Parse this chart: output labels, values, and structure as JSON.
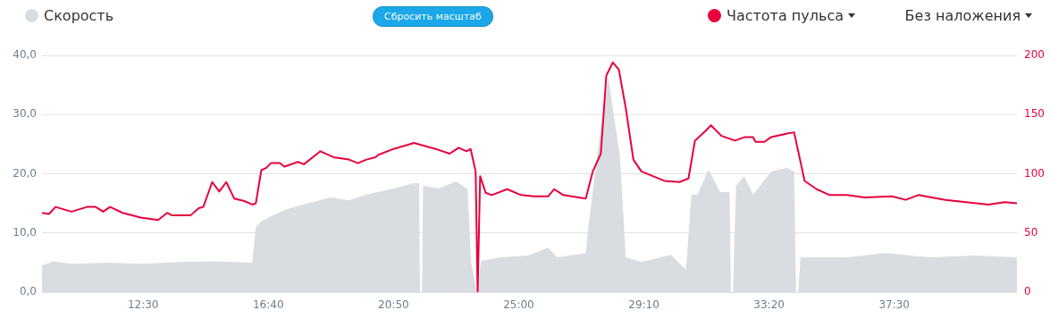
{
  "chart_data": {
    "type": "line",
    "legend": "top",
    "grid": "y",
    "marker": "none",
    "line_style": "solid",
    "annotations": [
      "Сбросить масштаб",
      "Без наложения"
    ],
    "xlim": [
      548,
      2495
    ],
    "xticks": [
      {
        "value": 750,
        "label": "12:30"
      },
      {
        "value": 1000,
        "label": "16:40"
      },
      {
        "value": 1250,
        "label": "20:50"
      },
      {
        "value": 1500,
        "label": "25:00"
      },
      {
        "value": 1750,
        "label": "29:10"
      },
      {
        "value": 2000,
        "label": "33:20"
      },
      {
        "value": 2250,
        "label": "37:30"
      }
    ],
    "ylim": [
      0,
      40
    ],
    "yticks": [
      {
        "value": 0,
        "label": "0,0"
      },
      {
        "value": 10,
        "label": "10,0"
      },
      {
        "value": 20,
        "label": "20,0"
      },
      {
        "value": 30,
        "label": "30,0"
      },
      {
        "value": 40,
        "label": "40,0"
      }
    ],
    "y2lim": [
      0,
      200
    ],
    "y2ticks": [
      0,
      50,
      100,
      150,
      200
    ],
    "series": [
      {
        "name": "Скорость",
        "type": "area",
        "color": "#d9dde1",
        "x": [
          548,
          571,
          607,
          679,
          750,
          821,
          893,
          968,
          975,
          986,
          1009,
          1036,
          1077,
          1125,
          1161,
          1196,
          1250,
          1291,
          1301,
          1303,
          1307,
          1309,
          1339,
          1375,
          1398,
          1405,
          1416,
          1425,
          1464,
          1518,
          1559,
          1577,
          1634,
          1639,
          1661,
          1679,
          1702,
          1714,
          1745,
          1804,
          1834,
          1845,
          1857,
          1879,
          1902,
          1921,
          1924,
          1928,
          1934,
          1950,
          1968,
          2005,
          2036,
          2050,
          2054,
          2058,
          2063,
          2155,
          2232,
          2321,
          2411,
          2495
        ],
        "values": [
          4.5,
          5.2,
          4.8,
          5.0,
          4.8,
          5.1,
          5.2,
          5.0,
          11,
          12,
          13,
          14,
          15,
          16,
          15.5,
          16.5,
          17.5,
          18.4,
          18.4,
          0,
          0,
          18,
          17.5,
          18.7,
          17.4,
          5.1,
          0,
          5.3,
          5.9,
          6.2,
          7.5,
          5.9,
          6.6,
          10.9,
          26,
          36.2,
          23,
          5.9,
          5.1,
          6.3,
          3.8,
          16.5,
          16.5,
          20.7,
          16.9,
          16.9,
          0,
          0,
          18,
          19.6,
          16.5,
          20.4,
          21,
          20.4,
          0,
          0,
          5.9,
          5.9,
          6.6,
          5.9,
          6.2,
          5.9
        ]
      },
      {
        "name": "Частота пульса",
        "type": "line",
        "axis": "y2",
        "color": "#e8003d",
        "x": [
          548,
          562,
          575,
          607,
          638,
          655,
          670,
          684,
          709,
          745,
          780,
          798,
          807,
          845,
          861,
          870,
          888,
          902,
          916,
          932,
          952,
          968,
          975,
          986,
          996,
          1005,
          1023,
          1032,
          1059,
          1071,
          1104,
          1130,
          1161,
          1179,
          1196,
          1214,
          1220,
          1250,
          1291,
          1334,
          1362,
          1380,
          1396,
          1404,
          1414,
          1418,
          1423,
          1434,
          1446,
          1477,
          1505,
          1530,
          1559,
          1571,
          1589,
          1634,
          1648,
          1664,
          1675,
          1688,
          1700,
          1714,
          1729,
          1745,
          1791,
          1821,
          1839,
          1852,
          1875,
          1884,
          1905,
          1932,
          1952,
          1968,
          1973,
          1991,
          2004,
          2036,
          2050,
          2071,
          2095,
          2121,
          2155,
          2191,
          2245,
          2273,
          2298,
          2352,
          2393,
          2438,
          2470,
          2495
        ],
        "values": [
          67,
          66,
          72,
          68,
          72,
          72,
          68,
          72,
          67,
          63,
          61,
          67,
          65,
          65,
          71,
          72,
          93,
          85,
          93,
          79,
          77,
          74,
          75,
          103,
          105,
          109,
          109,
          106,
          110,
          108,
          119,
          114,
          112,
          109,
          112,
          114,
          116,
          121,
          126,
          121,
          117,
          122,
          119,
          121,
          102,
          0,
          98,
          84,
          82,
          87,
          82,
          81,
          81,
          87,
          82,
          79,
          102,
          117,
          183,
          194,
          188,
          155,
          112,
          102,
          94,
          93,
          96,
          128,
          137,
          141,
          132,
          128,
          131,
          131,
          127,
          127,
          131,
          134,
          135,
          94,
          87,
          82,
          82,
          80,
          81,
          78,
          82,
          78,
          76,
          74,
          76,
          75
        ]
      }
    ]
  }
}
